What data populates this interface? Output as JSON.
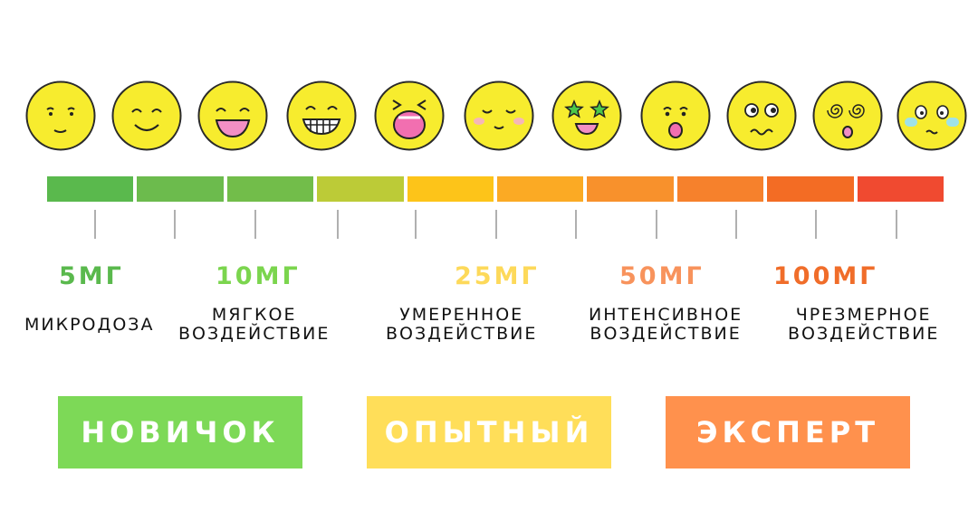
{
  "scale": {
    "segment_colors": [
      "#5ab94d",
      "#6cbb4d",
      "#72bd4a",
      "#bccb37",
      "#fdc419",
      "#fbaa24",
      "#f8912c",
      "#f6812c",
      "#f36c24",
      "#f04a30"
    ]
  },
  "faces": [
    {
      "icon": "neutral-smile-face-icon"
    },
    {
      "icon": "smile-face-icon"
    },
    {
      "icon": "grin-face-icon"
    },
    {
      "icon": "teeth-grin-face-icon"
    },
    {
      "icon": "laughing-face-icon"
    },
    {
      "icon": "blissful-face-icon"
    },
    {
      "icon": "star-eyes-face-icon"
    },
    {
      "icon": "surprised-face-icon"
    },
    {
      "icon": "worried-rolling-eyes-face-icon"
    },
    {
      "icon": "dizzy-spiral-eyes-face-icon"
    },
    {
      "icon": "sick-face-icon"
    }
  ],
  "doses": [
    {
      "label": "5МГ",
      "color": "#5ab94d"
    },
    {
      "label": "10МГ",
      "color": "#7bd54e"
    },
    {
      "label": "25МГ",
      "color": "#fdd95a"
    },
    {
      "label": "50МГ",
      "color": "#f8935c"
    },
    {
      "label": "100МГ",
      "color": "#f06d2a"
    }
  ],
  "effects": [
    {
      "line1": "МИКРОДОЗА",
      "line2": ""
    },
    {
      "line1": "МЯГКОЕ",
      "line2": "ВОЗДЕЙСТВИЕ"
    },
    {
      "line1": "УМЕРЕННОЕ",
      "line2": "ВОЗДЕЙСТВИЕ"
    },
    {
      "line1": "ИНТЕНСИВНОЕ",
      "line2": "ВОЗДЕЙСТВИЕ"
    },
    {
      "line1": "ЧРЕЗМЕРНОЕ",
      "line2": "ВОЗДЕЙСТВИЕ"
    }
  ],
  "levels": [
    {
      "label": "НОВИЧОК",
      "color": "#7dd957"
    },
    {
      "label": "ОПЫТНЫЙ",
      "color": "#ffde59"
    },
    {
      "label": "ЭКСПЕРТ",
      "color": "#ff914d"
    }
  ]
}
